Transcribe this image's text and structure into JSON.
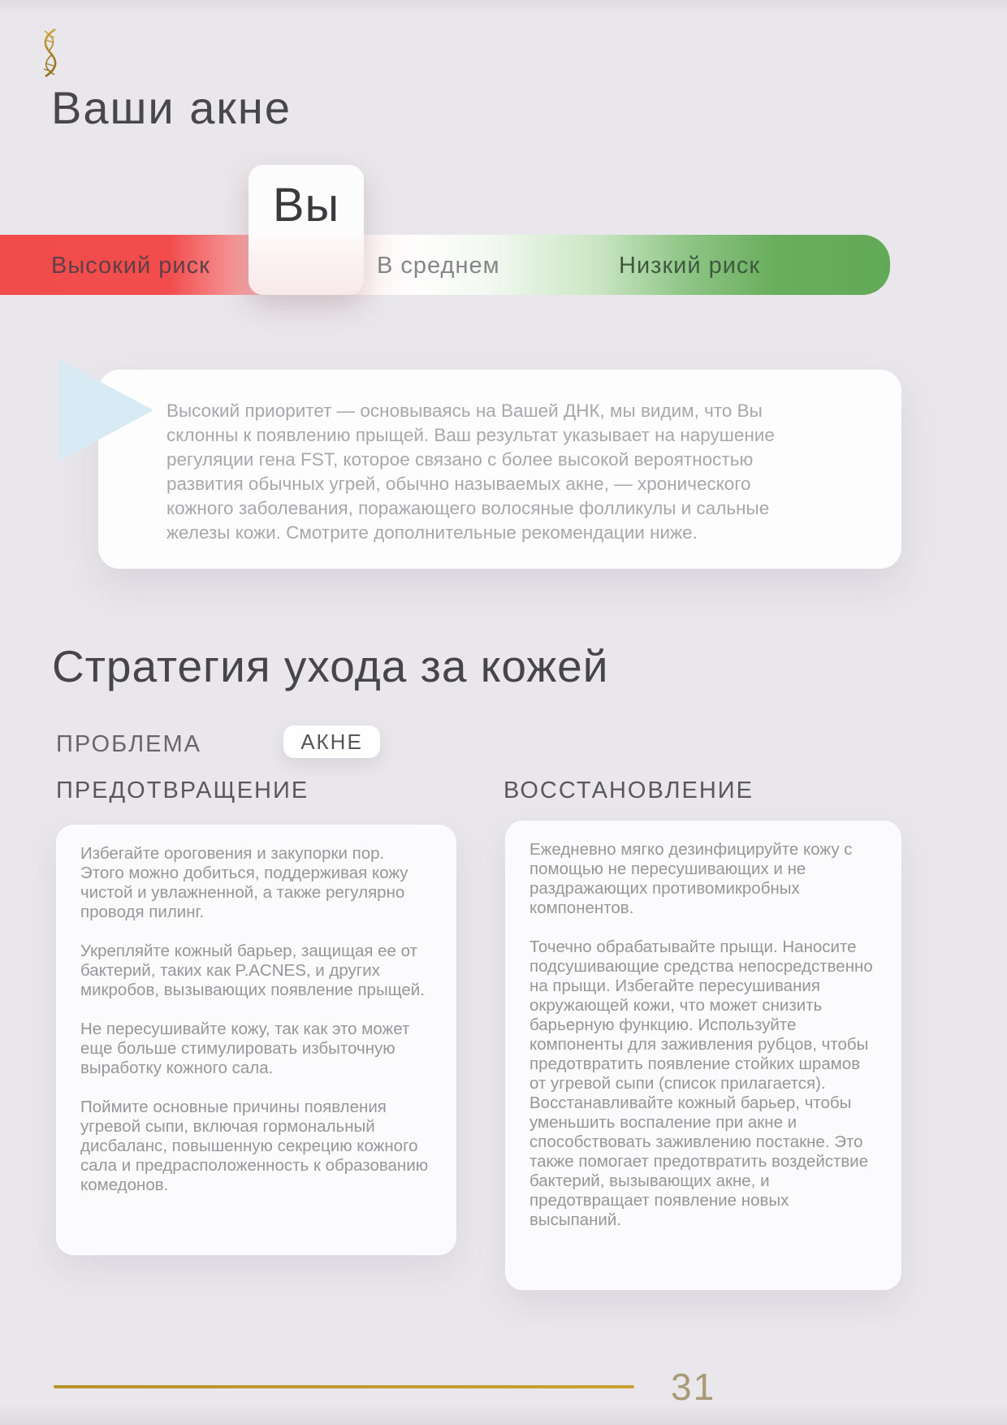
{
  "header": {
    "title": "Ваши акне",
    "logo": "dna-helix-gold"
  },
  "risk_scale": {
    "marker_label": "Вы",
    "labels": {
      "high": "Высокий риск",
      "medium": "В среднем",
      "low": "Низкий риск"
    },
    "colors": {
      "high_risk": "#f14b4c",
      "low_risk": "#62a957",
      "marker_card": "#fdfcfd"
    }
  },
  "priority_note": {
    "text": "Высокий приоритет — основываясь на Вашей ДНК, мы видим, что Вы склонны к появлению прыщей. Ваш результат указывает на нарушение регуляции гена FST, которое связано с более высокой вероятностью развития обычных угрей, обычно называемых акне, — хронического кожного заболевания, поражающего волосяные фолликулы и сальные железы кожи. Смотрите дополнительные рекомендации ниже.",
    "flag_color": "#d8eaf4"
  },
  "strategy": {
    "title": "Стратегия ухода за кожей",
    "problem_label": "ПРОБЛЕМА",
    "problem_value": "АКНЕ",
    "prevention": {
      "header": "ПРЕДОТВРАЩЕНИЕ",
      "paragraphs": [
        "Избегайте ороговения и закупорки пор. Этого можно добиться, поддерживая кожу чистой и увлажненной, а также регулярно проводя пилинг.",
        "Укрепляйте кожный барьер, защищая ее от бактерий, таких как P.ACNES, и других микробов, вызывающих появление прыщей.",
        "Не пересушивайте кожу, так как это может еще больше стимулировать избыточную выработку кожного сала.",
        "Поймите основные причины появления угревой сыпи, включая гормональный дисбаланс, повышенную секрецию кожного сала и предрасположенность к образованию комедонов."
      ]
    },
    "recovery": {
      "header": "ВОССТАНОВЛЕНИЕ",
      "paragraphs": [
        "Ежедневно мягко дезинфицируйте кожу с помощью не пересушивающих и не раздражающих противомикробных компонентов.",
        "Точечно обрабатывайте прыщи. Наносите подсушивающие средства непосредственно на прыщи. Избегайте пересушивания окружающей кожи, что может снизить барьерную функцию. Используйте компоненты для заживления рубцов, чтобы предотвратить появление стойких шрамов от угревой сыпи (список прилагается). Восстанавливайте кожный барьер, чтобы уменьшить воспаление при акне и способствовать заживлению постакне. Это также помогает предотвратить воздействие бактерий, вызывающих акне, и предотвращает появление новых высыпаний."
      ]
    }
  },
  "footer": {
    "page_number": "31",
    "accent_color": "#c9a233"
  }
}
